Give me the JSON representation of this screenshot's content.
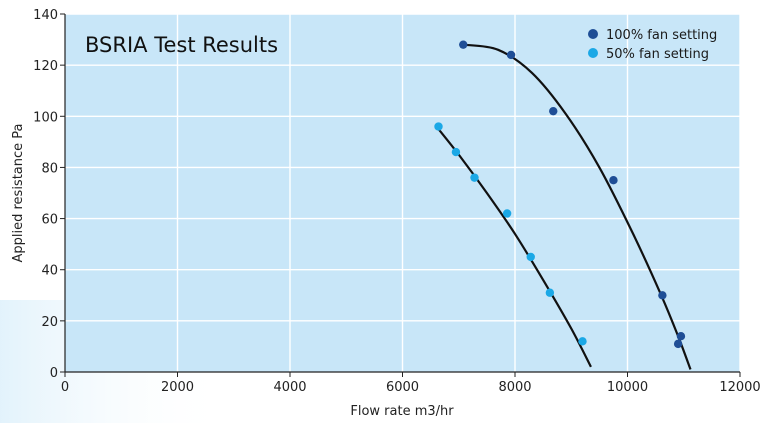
{
  "chart_data": {
    "type": "scatter",
    "title": "BSRIA Test Results",
    "xlabel": "Flow rate m3/hr",
    "ylabel": "Applied resistance Pa",
    "xlim": [
      0,
      12000
    ],
    "ylim": [
      0,
      140
    ],
    "x_ticks": [
      0,
      2000,
      4000,
      6000,
      8000,
      10000,
      12000
    ],
    "y_ticks": [
      0,
      20,
      40,
      60,
      80,
      100,
      120,
      140
    ],
    "grid": true,
    "legend_position": "top-right",
    "plot_background": "#c8e6f8",
    "series": [
      {
        "name": "100% fan setting",
        "color": "#1f4e96",
        "points": [
          {
            "x": 7080,
            "y": 128
          },
          {
            "x": 7930,
            "y": 124
          },
          {
            "x": 8680,
            "y": 102
          },
          {
            "x": 9750,
            "y": 75
          },
          {
            "x": 10620,
            "y": 30
          },
          {
            "x": 10950,
            "y": 14
          },
          {
            "x": 10900,
            "y": 11
          }
        ],
        "trend": [
          {
            "x": 7080,
            "y": 128
          },
          {
            "x": 7700,
            "y": 126
          },
          {
            "x": 8300,
            "y": 117
          },
          {
            "x": 8900,
            "y": 101
          },
          {
            "x": 9500,
            "y": 80
          },
          {
            "x": 10100,
            "y": 54
          },
          {
            "x": 10600,
            "y": 30
          },
          {
            "x": 10900,
            "y": 14
          },
          {
            "x": 11120,
            "y": 1
          }
        ]
      },
      {
        "name": "50% fan setting",
        "color": "#1ba8e6",
        "points": [
          {
            "x": 6640,
            "y": 96
          },
          {
            "x": 6950,
            "y": 86
          },
          {
            "x": 7280,
            "y": 76
          },
          {
            "x": 7860,
            "y": 62
          },
          {
            "x": 8280,
            "y": 45
          },
          {
            "x": 8620,
            "y": 31
          },
          {
            "x": 9200,
            "y": 12
          }
        ],
        "trend": [
          {
            "x": 6640,
            "y": 95
          },
          {
            "x": 7000,
            "y": 85
          },
          {
            "x": 7500,
            "y": 70
          },
          {
            "x": 8000,
            "y": 54
          },
          {
            "x": 8500,
            "y": 36
          },
          {
            "x": 9000,
            "y": 17
          },
          {
            "x": 9350,
            "y": 2
          }
        ]
      }
    ]
  }
}
